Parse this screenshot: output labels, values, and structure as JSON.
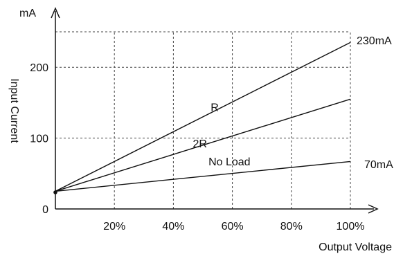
{
  "chart_data": {
    "type": "line",
    "xlabel": "Output Voltage",
    "ylabel": "Input Current",
    "y_unit": "mA",
    "x_ticks": [
      "20%",
      "40%",
      "60%",
      "80%",
      "100%"
    ],
    "x_tick_values": [
      20,
      40,
      60,
      80,
      100
    ],
    "y_ticks": [
      "0",
      "100",
      "200"
    ],
    "y_tick_values": [
      0,
      100,
      200
    ],
    "xlim": [
      0,
      100
    ],
    "ylim": [
      0,
      250
    ],
    "grid": true,
    "series": [
      {
        "name": "R",
        "x": [
          0,
          100
        ],
        "y": [
          25,
          235
        ]
      },
      {
        "name": "2R",
        "x": [
          0,
          100
        ],
        "y": [
          25,
          155
        ]
      },
      {
        "name": "No Load",
        "x": [
          0,
          100
        ],
        "y": [
          25,
          67
        ]
      }
    ],
    "annotations": [
      "230mA",
      "70mA"
    ]
  }
}
